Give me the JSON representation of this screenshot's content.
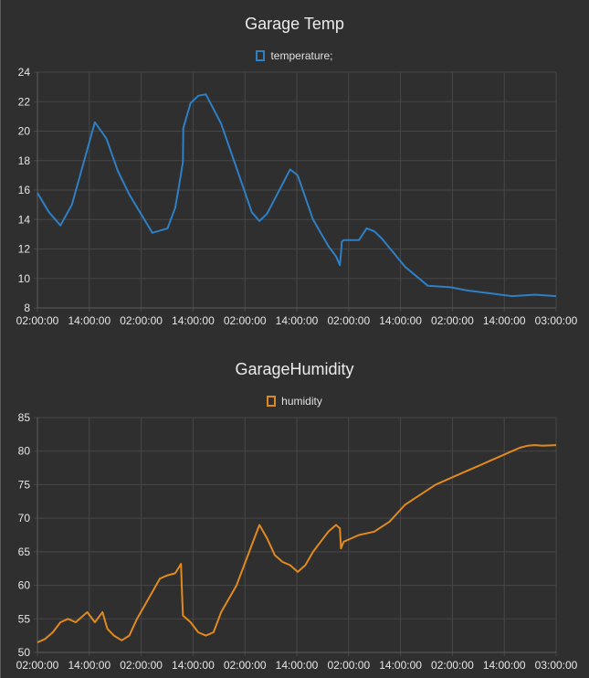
{
  "charts": [
    {
      "id": "temp",
      "title": "Garage Temp",
      "legend_label": "temperature;",
      "color": "#2e7fc4"
    },
    {
      "id": "hum",
      "title": "GarageHumidity",
      "legend_label": "humidity",
      "color": "#e08a1e"
    }
  ],
  "chart_data": [
    {
      "type": "line",
      "title": "Garage Temp",
      "xlabel": "",
      "ylabel": "",
      "x_tick_labels": [
        "02:00:00",
        "14:00:00",
        "02:00:00",
        "14:00:00",
        "02:00:00",
        "14:00:00",
        "02:00:00",
        "14:00:00",
        "02:00:00",
        "14:00:00",
        "03:00:00"
      ],
      "ylim": [
        8,
        24
      ],
      "y_ticks": [
        8,
        10,
        12,
        14,
        16,
        18,
        20,
        22,
        24
      ],
      "grid": true,
      "legend_position": "top-center",
      "series": [
        {
          "name": "temperature;",
          "color": "#2e7fc4",
          "x_hours": [
            0,
            3,
            6,
            9,
            12,
            15,
            18,
            21,
            24,
            30,
            34,
            36,
            37,
            38,
            38.1,
            40,
            42,
            44,
            48,
            54,
            56,
            58,
            60,
            64,
            66,
            68,
            70,
            72,
            76,
            78,
            79,
            79.3,
            79.5,
            80,
            82,
            84,
            86,
            88,
            90,
            96,
            102,
            108,
            112,
            118,
            124,
            130,
            135.5
          ],
          "values": [
            15.8,
            14.5,
            13.6,
            15,
            17.8,
            20.6,
            19.5,
            17.3,
            15.7,
            13.1,
            13.4,
            14.8,
            16.3,
            17.9,
            20.2,
            21.9,
            22.4,
            22.5,
            20.5,
            16.0,
            14.5,
            13.9,
            14.4,
            16.4,
            17.4,
            17.0,
            15.5,
            14.0,
            12.2,
            11.5,
            10.9,
            11.7,
            12.5,
            12.6,
            12.6,
            12.6,
            13.4,
            13.2,
            12.7,
            10.8,
            9.5,
            9.4,
            9.2,
            9.0,
            8.8,
            8.9,
            8.8
          ]
        }
      ]
    },
    {
      "type": "line",
      "title": "GarageHumidity",
      "xlabel": "",
      "ylabel": "",
      "x_tick_labels": [
        "02:00:00",
        "14:00:00",
        "02:00:00",
        "14:00:00",
        "02:00:00",
        "14:00:00",
        "02:00:00",
        "14:00:00",
        "02:00:00",
        "14:00:00",
        "03:00:00"
      ],
      "ylim": [
        50,
        85
      ],
      "y_ticks": [
        50,
        55,
        60,
        65,
        70,
        75,
        80,
        85
      ],
      "grid": true,
      "legend_position": "top-center",
      "series": [
        {
          "name": "humidity",
          "color": "#e08a1e",
          "x_hours": [
            0,
            2,
            4,
            6,
            8,
            10,
            12,
            13,
            15,
            17,
            18,
            18.3,
            20,
            22,
            24,
            26,
            28,
            30,
            32,
            34,
            36,
            37.5,
            37.7,
            38,
            40,
            42,
            44,
            46,
            48,
            50,
            52,
            54,
            56,
            58,
            60,
            62,
            64,
            66,
            68,
            70,
            72,
            74,
            76,
            78,
            79,
            79.3,
            80,
            84,
            88,
            92,
            96,
            100,
            104,
            108,
            112,
            116,
            120,
            124,
            126,
            128,
            130,
            132,
            135.5
          ],
          "values": [
            51.5,
            52,
            53,
            54.5,
            55,
            54.5,
            55.5,
            56,
            54.5,
            56,
            54,
            53.5,
            52.5,
            51.8,
            52.5,
            55,
            57,
            59,
            61,
            61.5,
            61.8,
            63.2,
            60,
            55.5,
            54.5,
            53,
            52.5,
            53,
            56,
            58,
            60,
            63,
            66,
            69,
            67,
            64.5,
            63.5,
            63,
            62,
            63,
            65,
            66.5,
            68,
            69,
            68.5,
            65.5,
            66.5,
            67.5,
            68,
            69.5,
            72,
            73.5,
            75,
            76,
            77,
            78,
            79,
            80,
            80.5,
            80.8,
            80.9,
            80.8,
            80.9
          ]
        }
      ]
    }
  ]
}
